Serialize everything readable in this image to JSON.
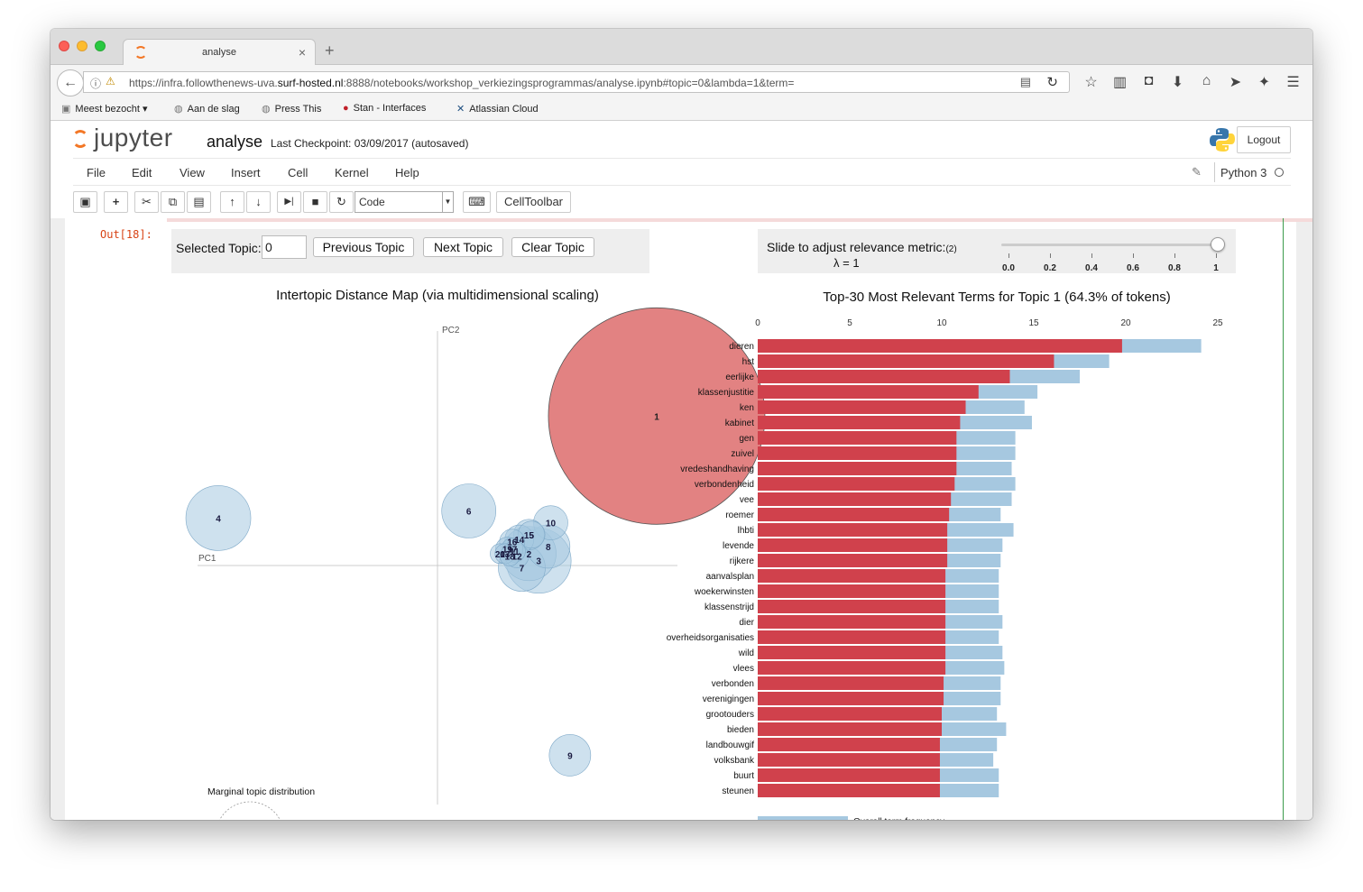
{
  "browser": {
    "tab_title": "analyse",
    "url_prefix": "https://infra.followthenews-uva.",
    "url_domain": "surf-hosted.nl",
    "url_suffix": ":8888/notebooks/workshop_verkiezingsprogrammas/analyse.ipynb#topic=0&lambda=1&term=",
    "bookmarks": [
      "Meest bezocht",
      "Aan de slag",
      "Press This",
      "Stan - Interfaces",
      "Atlassian Cloud"
    ]
  },
  "jupyter": {
    "logo_text": "jupyter",
    "notebook_name": "analyse",
    "checkpoint": "Last Checkpoint: 03/09/2017 (autosaved)",
    "logout_label": "Logout",
    "menu": [
      "File",
      "Edit",
      "View",
      "Insert",
      "Cell",
      "Kernel",
      "Help"
    ],
    "kernel": "Python 3",
    "cell_type": "Code",
    "celltoolbar_label": "CellToolbar"
  },
  "output": {
    "prompt": "Out[18]:",
    "selected_topic_label": "Selected Topic:",
    "selected_topic_value": "0",
    "previous_label": "Previous Topic",
    "next_label": "Next Topic",
    "clear_label": "Clear Topic",
    "relevance_label": "Slide to adjust relevance metric:",
    "relevance_note": "(2)",
    "lambda_label": "λ = 1",
    "slider_ticks": [
      "0.0",
      "0.2",
      "0.4",
      "0.6",
      "0.8",
      "1"
    ],
    "lambda_value": 1
  },
  "chart_data": [
    {
      "type": "scatter",
      "title": "Intertopic Distance Map (via multidimensional scaling)",
      "xlabel": "PC1",
      "ylabel": "PC2",
      "annotation": "Marginal topic distribution",
      "selected_color": "#e07b7b",
      "default_color": "#a6c8e0",
      "note": "bubble positions estimated on a normalized PC1/PC2 plane (-1..1); r is relative bubble size",
      "topics": [
        {
          "label": "1",
          "pc1": 0.91,
          "pc2": 0.63,
          "r": 120,
          "selected": true
        },
        {
          "label": "4",
          "pc1": -0.91,
          "pc2": 0.2,
          "r": 36
        },
        {
          "label": "6",
          "pc1": 0.13,
          "pc2": 0.23,
          "r": 30
        },
        {
          "label": "10",
          "pc1": 0.47,
          "pc2": 0.18,
          "r": 19
        },
        {
          "label": "15",
          "pc1": 0.38,
          "pc2": 0.13,
          "r": 17
        },
        {
          "label": "5",
          "pc1": 0.39,
          "pc2": 0.13,
          "r": 15
        },
        {
          "label": "14",
          "pc1": 0.34,
          "pc2": 0.11,
          "r": 16
        },
        {
          "label": "16",
          "pc1": 0.31,
          "pc2": 0.1,
          "r": 14
        },
        {
          "label": "8",
          "pc1": 0.46,
          "pc2": 0.08,
          "r": 24
        },
        {
          "label": "19",
          "pc1": 0.29,
          "pc2": 0.07,
          "r": 13
        },
        {
          "label": "17",
          "pc1": 0.31,
          "pc2": 0.07,
          "r": 12
        },
        {
          "label": "11",
          "pc1": 0.32,
          "pc2": 0.06,
          "r": 12
        },
        {
          "label": "20",
          "pc1": 0.26,
          "pc2": 0.05,
          "r": 11
        },
        {
          "label": "13",
          "pc1": 0.28,
          "pc2": 0.05,
          "r": 11
        },
        {
          "label": "12",
          "pc1": 0.33,
          "pc2": 0.04,
          "r": 13
        },
        {
          "label": "2",
          "pc1": 0.38,
          "pc2": 0.05,
          "r": 30
        },
        {
          "label": "18",
          "pc1": 0.3,
          "pc2": 0.04,
          "r": 11
        },
        {
          "label": "3",
          "pc1": 0.42,
          "pc2": 0.02,
          "r": 36
        },
        {
          "label": "7",
          "pc1": 0.35,
          "pc2": -0.01,
          "r": 26
        },
        {
          "label": "9",
          "pc1": 0.55,
          "pc2": -0.8,
          "r": 23
        }
      ]
    },
    {
      "type": "bar",
      "title": "Top-30 Most Relevant Terms for Topic 1 (64.3% of tokens)",
      "orientation": "horizontal",
      "xlim": [
        0,
        25
      ],
      "xticks": [
        0,
        5,
        10,
        15,
        20,
        25
      ],
      "legend_label": "Overall term frequency",
      "colors": {
        "overall": "#a6c8e0",
        "topic": "#d0414c"
      },
      "categories": [
        "dieren",
        "hst",
        "eerlijke",
        "klassenjustitie",
        "ken",
        "kabinet",
        "gen",
        "zuivel",
        "vredeshandhaving",
        "verbondenheid",
        "vee",
        "roemer",
        "lhbti",
        "levende",
        "rijkere",
        "aanvalsplan",
        "woekerwinsten",
        "klassenstrijd",
        "dier",
        "overheidsorganisaties",
        "wild",
        "vlees",
        "verbonden",
        "verenigingen",
        "grootouders",
        "bieden",
        "landbouwgif",
        "volksbank",
        "buurt",
        "steunen"
      ],
      "series": [
        {
          "name": "Overall term frequency",
          "values": [
            24.1,
            19.1,
            17.5,
            15.2,
            14.5,
            14.9,
            14.0,
            14.0,
            13.8,
            14.0,
            13.8,
            13.2,
            13.9,
            13.3,
            13.2,
            13.1,
            13.1,
            13.1,
            13.3,
            13.1,
            13.3,
            13.4,
            13.2,
            13.2,
            13.0,
            13.5,
            13.0,
            12.8,
            13.1,
            13.1
          ]
        },
        {
          "values": [
            19.8,
            16.1,
            13.7,
            12.0,
            11.3,
            11.0,
            10.8,
            10.8,
            10.8,
            10.7,
            10.5,
            10.4,
            10.3,
            10.3,
            10.3,
            10.2,
            10.2,
            10.2,
            10.2,
            10.2,
            10.2,
            10.2,
            10.1,
            10.1,
            10.0,
            10.0,
            9.9,
            9.9,
            9.9,
            9.9
          ]
        }
      ]
    }
  ]
}
